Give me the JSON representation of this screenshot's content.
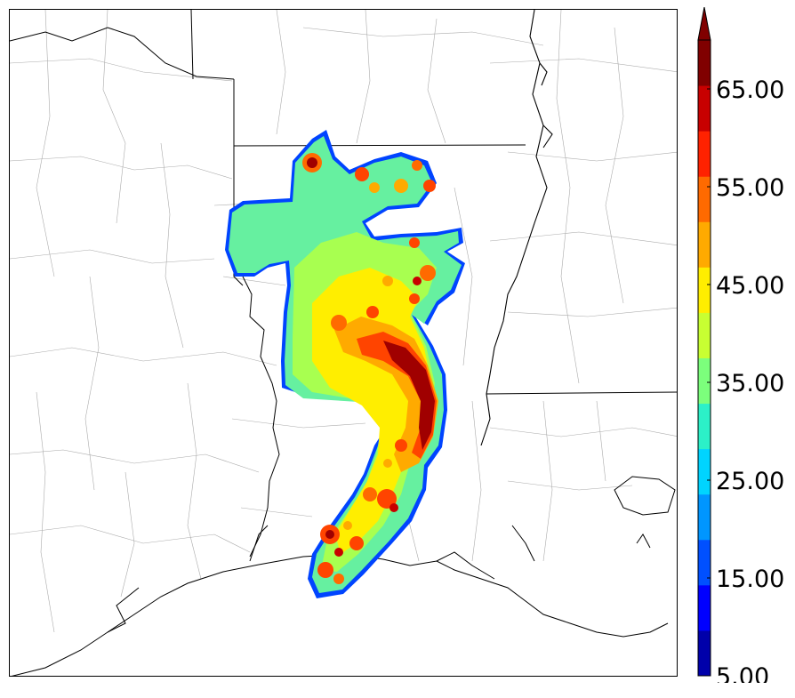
{
  "colorbar": {
    "min": 5,
    "max": 70,
    "step": 5,
    "extend": "max",
    "labels": [
      "5.00",
      "15.00",
      "25.00",
      "35.00",
      "45.00",
      "55.00",
      "65.00"
    ],
    "colors": [
      "#0000aa",
      "#0000ff",
      "#0050ff",
      "#0096ff",
      "#00d4ff",
      "#2cf0c8",
      "#7cff7c",
      "#c8ff32",
      "#ffee00",
      "#ffaa00",
      "#ff6a00",
      "#ff2200",
      "#c80000",
      "#800000"
    ]
  },
  "map": {
    "field": "reflectivity",
    "features": [
      "coastline",
      "state-borders",
      "county-borders",
      "mississippi-river",
      "storm-reflectivity"
    ]
  }
}
